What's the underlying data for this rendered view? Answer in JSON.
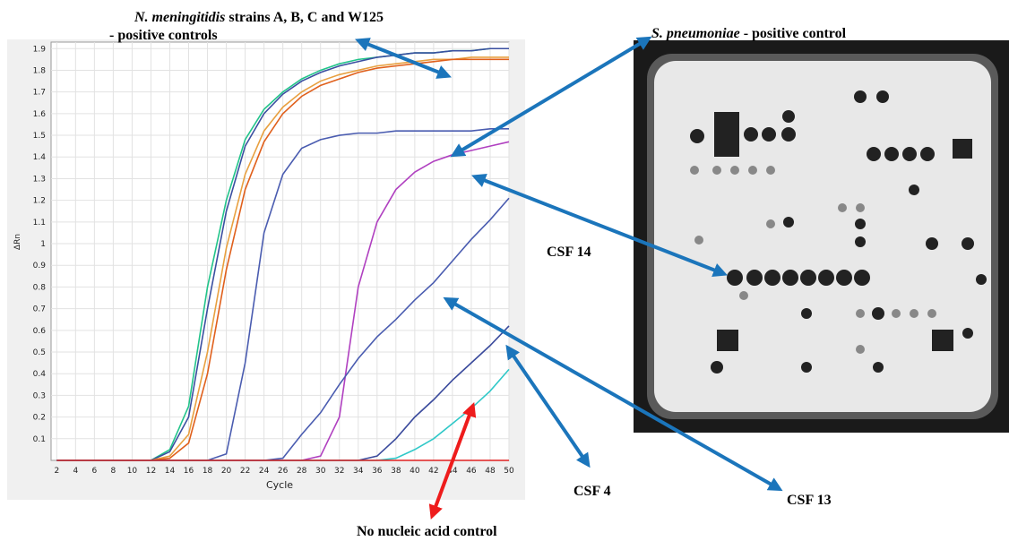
{
  "chart_data": {
    "type": "line",
    "xlabel": "Cycle",
    "ylabel": "ΔRn",
    "x": [
      2,
      4,
      6,
      8,
      10,
      12,
      14,
      16,
      18,
      20,
      22,
      24,
      26,
      28,
      30,
      32,
      34,
      36,
      38,
      40,
      42,
      44,
      46,
      48,
      50
    ],
    "xlim": [
      1.4,
      50
    ],
    "ylim": [
      0,
      1.93
    ],
    "xticks": [
      2,
      4,
      6,
      8,
      10,
      12,
      14,
      16,
      18,
      20,
      22,
      24,
      26,
      28,
      30,
      32,
      34,
      36,
      38,
      40,
      42,
      44,
      46,
      48,
      50
    ],
    "yticks": [
      0.1,
      0.2,
      0.3,
      0.4,
      0.5,
      0.6,
      0.7,
      0.8,
      0.9,
      1.0,
      1.1,
      1.2,
      1.3,
      1.4,
      1.5,
      1.6,
      1.7,
      1.8,
      1.9
    ],
    "grid": true,
    "series": [
      {
        "color": "#22c48a",
        "values": [
          0,
          0,
          0,
          0,
          0,
          0,
          0.05,
          0.25,
          0.8,
          1.2,
          1.48,
          1.62,
          1.7,
          1.76,
          1.8,
          1.83,
          1.85,
          1.86,
          1.87,
          1.88,
          1.88,
          1.89,
          1.89,
          1.9,
          1.9
        ]
      },
      {
        "color": "#3a4fa0",
        "values": [
          0,
          0,
          0,
          0,
          0,
          0,
          0.04,
          0.2,
          0.7,
          1.15,
          1.45,
          1.6,
          1.69,
          1.75,
          1.79,
          1.82,
          1.84,
          1.86,
          1.87,
          1.88,
          1.88,
          1.89,
          1.89,
          1.9,
          1.9
        ]
      },
      {
        "color": "#e8a040",
        "values": [
          0,
          0,
          0,
          0,
          0,
          0,
          0.02,
          0.12,
          0.5,
          0.98,
          1.32,
          1.52,
          1.63,
          1.7,
          1.75,
          1.78,
          1.8,
          1.82,
          1.83,
          1.84,
          1.85,
          1.85,
          1.86,
          1.86,
          1.86
        ]
      },
      {
        "color": "#e0601c",
        "values": [
          0,
          0,
          0,
          0,
          0,
          0,
          0.01,
          0.08,
          0.4,
          0.88,
          1.25,
          1.47,
          1.6,
          1.68,
          1.73,
          1.76,
          1.79,
          1.81,
          1.82,
          1.83,
          1.84,
          1.85,
          1.85,
          1.85,
          1.85
        ]
      },
      {
        "color": "#4a5cb0",
        "values": [
          0,
          0,
          0,
          0,
          0,
          0,
          0,
          0,
          0,
          0.03,
          0.45,
          1.05,
          1.32,
          1.44,
          1.48,
          1.5,
          1.51,
          1.51,
          1.52,
          1.52,
          1.52,
          1.52,
          1.52,
          1.53,
          1.53
        ]
      },
      {
        "color": "#b040c0",
        "values": [
          0,
          0,
          0,
          0,
          0,
          0,
          0,
          0,
          0,
          0,
          0,
          0,
          0,
          0,
          0.02,
          0.2,
          0.8,
          1.1,
          1.25,
          1.33,
          1.38,
          1.41,
          1.43,
          1.45,
          1.47
        ]
      },
      {
        "color": "#4a5cb0",
        "values": [
          0,
          0,
          0,
          0,
          0,
          0,
          0,
          0,
          0,
          0,
          0,
          0,
          0.01,
          0.12,
          0.22,
          0.35,
          0.47,
          0.57,
          0.65,
          0.74,
          0.82,
          0.92,
          1.02,
          1.11,
          1.21
        ]
      },
      {
        "color": "#3a4a9c",
        "values": [
          0,
          0,
          0,
          0,
          0,
          0,
          0,
          0,
          0,
          0,
          0,
          0,
          0,
          0,
          0,
          0,
          0,
          0.02,
          0.1,
          0.2,
          0.28,
          0.37,
          0.45,
          0.53,
          0.62
        ]
      },
      {
        "color": "#30c8c8",
        "values": [
          0,
          0,
          0,
          0,
          0,
          0,
          0,
          0,
          0,
          0,
          0,
          0,
          0,
          0,
          0,
          0,
          0,
          0,
          0.01,
          0.05,
          0.1,
          0.17,
          0.24,
          0.32,
          0.42
        ]
      },
      {
        "color": "#e02020",
        "values": [
          0,
          0,
          0,
          0,
          0,
          0,
          0,
          0,
          0,
          0,
          0,
          0,
          0,
          0,
          0,
          0,
          0,
          0,
          0,
          0,
          0,
          0,
          0,
          0,
          0
        ]
      }
    ]
  },
  "annotations": {
    "nm": {
      "italic": "N. meningitidis",
      "text": "strains A, B, C and W125",
      "line2": "- positive controls"
    },
    "sp": {
      "italic": "S. pneumoniae",
      "text": "- positive control"
    },
    "csf14": "CSF 14",
    "csf13": "CSF 13",
    "csf4": "CSF 4",
    "ntc": "No nucleic acid control"
  }
}
